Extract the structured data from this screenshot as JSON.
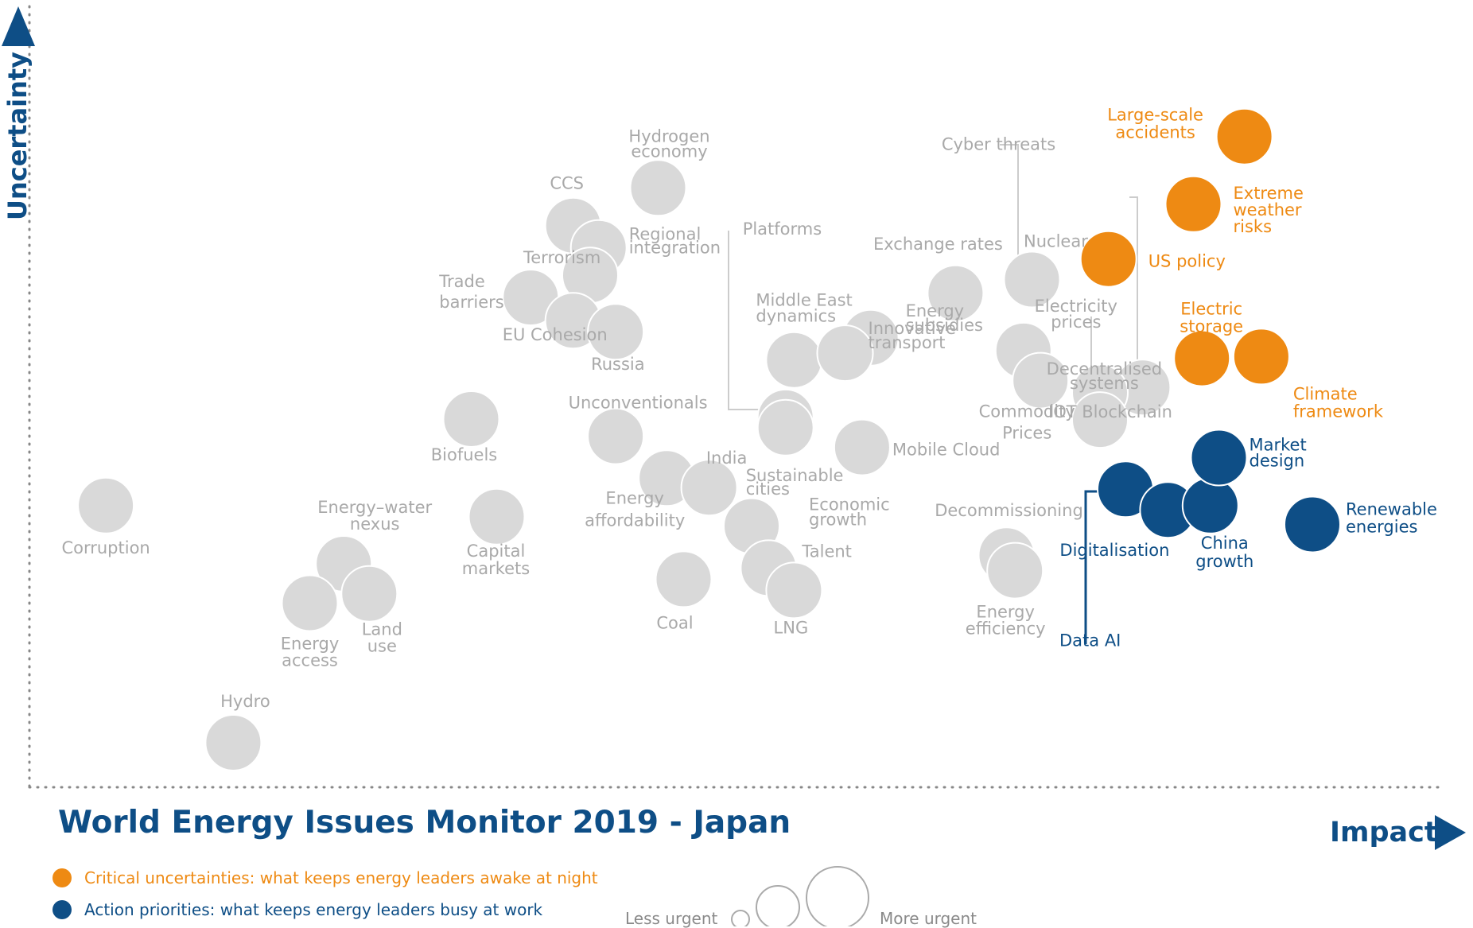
{
  "colors": {
    "orange": "#ee8a13",
    "blue": "#0e4e86",
    "grey": "#d9d9d9",
    "label_grey": "#a9a9a9",
    "axis": "#888888"
  },
  "page": {
    "title": "World Energy Issues Monitor 2019 - Japan",
    "x_axis_label": "Impact",
    "y_axis_label": "Uncertainty",
    "legend": {
      "critical": "Critical uncertainties: what keeps energy leaders awake at night",
      "priorities": "Action priorities: what keeps energy leaders busy at work",
      "less_urgent": "Less urgent",
      "more_urgent": "More urgent"
    }
  },
  "chart_data": {
    "type": "scatter",
    "title": "World Energy Issues Monitor 2019 - Japan",
    "xlabel": "Impact",
    "ylabel": "Uncertainty",
    "xlim": [
      0,
      1.7
    ],
    "ylim": [
      0,
      0.9
    ],
    "size_legend": [
      "Less urgent",
      "More urgent"
    ],
    "series": [
      {
        "name": "Critical uncertainties",
        "color": "#ee8a13",
        "points": [
          {
            "label": "Large-scale accidents",
            "x": 1.43,
            "y": 0.76
          },
          {
            "label": "Extreme weather risks",
            "x": 1.37,
            "y": 0.681
          },
          {
            "label": "US policy",
            "x": 1.27,
            "y": 0.617
          },
          {
            "label": "Electric storage",
            "x": 1.38,
            "y": 0.501
          },
          {
            "label": "Climate framework",
            "x": 1.45,
            "y": 0.503
          }
        ]
      },
      {
        "name": "Action priorities",
        "color": "#0e4e86",
        "points": [
          {
            "label": "Data AI",
            "x": 1.29,
            "y": 0.348
          },
          {
            "label": "Digitalisation",
            "x": 1.34,
            "y": 0.324
          },
          {
            "label": "China growth",
            "x": 1.39,
            "y": 0.329
          },
          {
            "label": "Market design",
            "x": 1.4,
            "y": 0.385
          },
          {
            "label": "Renewable energies",
            "x": 1.51,
            "y": 0.307
          }
        ]
      },
      {
        "name": "Other issues",
        "color": "#d9d9d9",
        "points": [
          {
            "label": "Hydrogen economy",
            "x": 0.74,
            "y": 0.7
          },
          {
            "label": "CCS",
            "x": 0.64,
            "y": 0.656
          },
          {
            "label": "Regional integration",
            "x": 0.67,
            "y": 0.63
          },
          {
            "label": "Terrorism",
            "x": 0.66,
            "y": 0.598
          },
          {
            "label": "Trade barriers",
            "x": 0.59,
            "y": 0.572
          },
          {
            "label": "EU Cohesion",
            "x": 0.64,
            "y": 0.545
          },
          {
            "label": "Russia",
            "x": 0.69,
            "y": 0.532
          },
          {
            "label": "Biofuels",
            "x": 0.52,
            "y": 0.43
          },
          {
            "label": "Unconventionals",
            "x": 0.69,
            "y": 0.41
          },
          {
            "label": "Corruption",
            "x": 0.09,
            "y": 0.329
          },
          {
            "label": "Energy–water nexus",
            "x": 0.37,
            "y": 0.261
          },
          {
            "label": "Energy access",
            "x": 0.33,
            "y": 0.215
          },
          {
            "label": "Land use",
            "x": 0.4,
            "y": 0.226
          },
          {
            "label": "Capital markets",
            "x": 0.55,
            "y": 0.316
          },
          {
            "label": "Energy affordability",
            "x": 0.75,
            "y": 0.361
          },
          {
            "label": "India",
            "x": 0.8,
            "y": 0.35
          },
          {
            "label": "Economic growth",
            "x": 0.85,
            "y": 0.305
          },
          {
            "label": "Talent",
            "x": 0.87,
            "y": 0.256
          },
          {
            "label": "LNG",
            "x": 0.9,
            "y": 0.23
          },
          {
            "label": "Coal",
            "x": 0.77,
            "y": 0.243
          },
          {
            "label": "Hydro",
            "x": 0.24,
            "y": 0.052
          },
          {
            "label": "Platforms",
            "x": 0.89,
            "y": 0.432
          },
          {
            "label": "Middle East dynamics",
            "x": 0.9,
            "y": 0.499
          },
          {
            "label": "Energy subsidies",
            "x": 0.99,
            "y": 0.525
          },
          {
            "label": "Innovative transport",
            "x": 0.96,
            "y": 0.507
          },
          {
            "label": "Sustainable cities",
            "x": 0.89,
            "y": 0.42
          },
          {
            "label": "Mobile Cloud",
            "x": 0.98,
            "y": 0.397
          },
          {
            "label": "Exchange rates",
            "x": 1.09,
            "y": 0.577
          },
          {
            "label": "Cyber threats",
            "x": 1.18,
            "y": 0.593
          },
          {
            "label": "Electricity prices",
            "x": 1.17,
            "y": 0.51
          },
          {
            "label": "Commodity Prices",
            "x": 1.19,
            "y": 0.475
          },
          {
            "label": "Decentralised systems",
            "x": 1.31,
            "y": 0.467
          },
          {
            "label": "Nuclear",
            "x": 1.26,
            "y": 0.461
          },
          {
            "label": "IOT Blockchain",
            "x": 1.26,
            "y": 0.429
          },
          {
            "label": "Decommissioning",
            "x": 1.15,
            "y": 0.271
          },
          {
            "label": "Energy efficiency",
            "x": 1.16,
            "y": 0.253
          }
        ]
      }
    ]
  }
}
